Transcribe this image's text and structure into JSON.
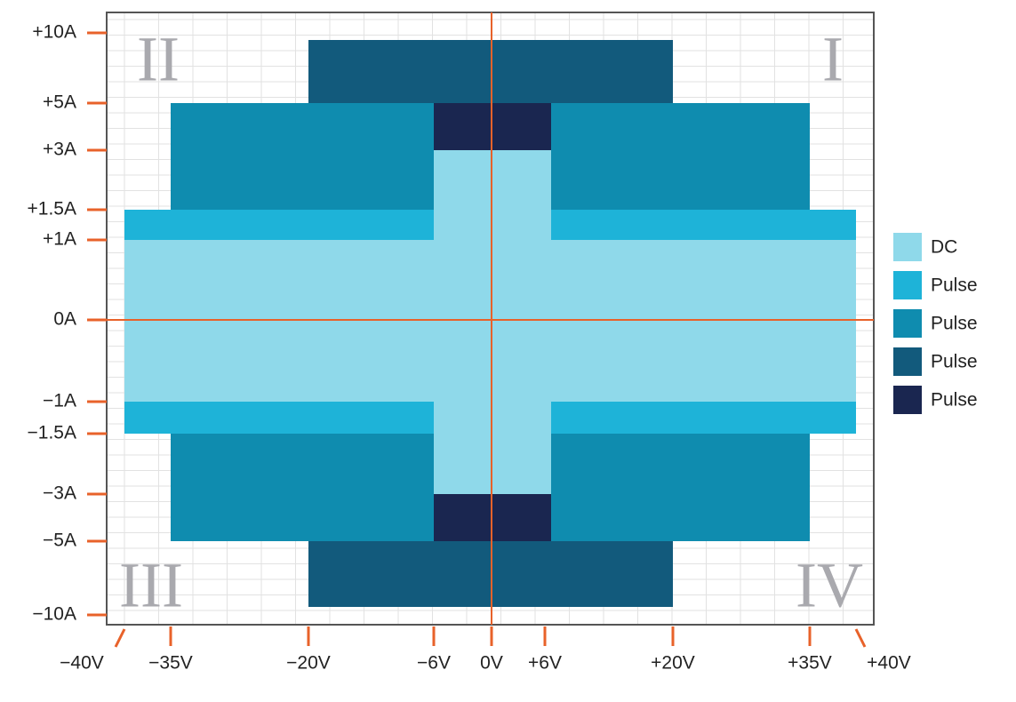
{
  "x_ticks": [
    "−40V",
    "−35V",
    "−20V",
    "−6V",
    "0V",
    "+6V",
    "+20V",
    "+35V",
    "+40V"
  ],
  "y_ticks": [
    "+10A",
    "+5A",
    "+3A",
    "+1.5A",
    "+1A",
    "0A",
    "−1A",
    "−1.5A",
    "−3A",
    "−5A",
    "−10A"
  ],
  "quadrants": [
    "I",
    "II",
    "III",
    "IV"
  ],
  "legend": [
    {
      "label": "DC",
      "color": "#8fd9ea"
    },
    {
      "label": "Pulse",
      "color": "#1eb3d8"
    },
    {
      "label": "Pulse",
      "color": "#0f8caf"
    },
    {
      "label": "Pulse",
      "color": "#125a7c"
    },
    {
      "label": "Pulse",
      "color": "#1a2650"
    }
  ]
}
